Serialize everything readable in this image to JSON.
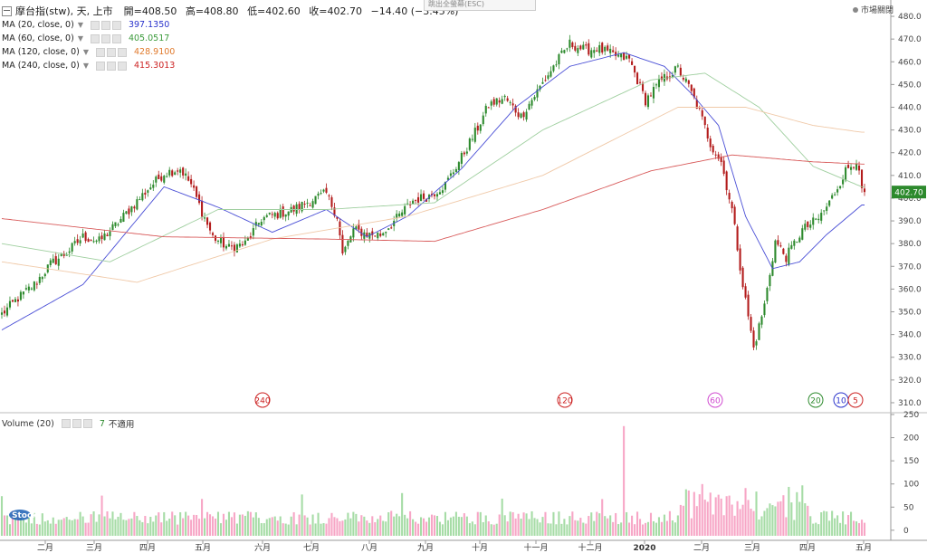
{
  "header": {
    "symbol": "摩台指(stw), 天, 上市",
    "open_label": "開=408.50",
    "high_label": "高=408.80",
    "low_label": "低=402.60",
    "close_label": "收=402.70",
    "change_label": "−14.40 (−3.45%)",
    "fullscreen_hint": "跳出全螢幕(ESC)",
    "market_status": "市場關閉"
  },
  "indicators": [
    {
      "label": "MA (20, close, 0)",
      "value": "397.1350",
      "color": "#2a33cc"
    },
    {
      "label": "MA (60, close, 0)",
      "value": "405.0517",
      "color": "#3a9a3a"
    },
    {
      "label": "MA (120, close, 0)",
      "value": "428.9100",
      "color": "#e07a2c"
    },
    {
      "label": "MA (240, close, 0)",
      "value": "415.3013",
      "color": "#cc2222"
    }
  ],
  "volume_legend": {
    "label": "Volume (20)",
    "value": "7",
    "status": "不適用"
  },
  "last_price_tag": "402.70",
  "logo_text": "Stock",
  "ma_markers": [
    "240",
    "120",
    "60",
    "20",
    "10",
    "5"
  ],
  "colors": {
    "up": "#2d8a2d",
    "down": "#b31c1c",
    "vol_up": "#a6dca6",
    "vol_down": "#f7a6c6",
    "ma20": "#4a4fd6",
    "ma60": "#9fcf9f",
    "ma120": "#f0c9a8",
    "ma240": "#d85a5a",
    "price_tag": "#2d8a2d"
  },
  "chart_data": [
    {
      "type": "candlestick",
      "ylim": [
        306,
        484
      ],
      "y_ticks": [
        310,
        320,
        330,
        340,
        350,
        360,
        370,
        380,
        390,
        400,
        410,
        420,
        430,
        440,
        450,
        460,
        470,
        480
      ],
      "x_labels": [
        "二月",
        "三月",
        "四月",
        "五月",
        "六月",
        "七月",
        "八月",
        "九月",
        "十月",
        "十一月",
        "十二月",
        "2020",
        "二月",
        "三月",
        "四月",
        "五月"
      ],
      "close_trend": [
        [
          0,
          349
        ],
        [
          6,
          356
        ],
        [
          12,
          362
        ],
        [
          18,
          371
        ],
        [
          24,
          376
        ],
        [
          30,
          383
        ],
        [
          36,
          381
        ],
        [
          42,
          388
        ],
        [
          48,
          396
        ],
        [
          54,
          404
        ],
        [
          60,
          411
        ],
        [
          66,
          413
        ],
        [
          70,
          406
        ],
        [
          74,
          394
        ],
        [
          78,
          383
        ],
        [
          84,
          378
        ],
        [
          90,
          380
        ],
        [
          96,
          391
        ],
        [
          102,
          393
        ],
        [
          108,
          395
        ],
        [
          114,
          399
        ],
        [
          120,
          402
        ],
        [
          124,
          392
        ],
        [
          126,
          375
        ],
        [
          130,
          386
        ],
        [
          136,
          384
        ],
        [
          140,
          384
        ],
        [
          146,
          391
        ],
        [
          152,
          399
        ],
        [
          158,
          401
        ],
        [
          164,
          406
        ],
        [
          170,
          418
        ],
        [
          176,
          431
        ],
        [
          180,
          441
        ],
        [
          186,
          444
        ],
        [
          192,
          436
        ],
        [
          198,
          447
        ],
        [
          204,
          458
        ],
        [
          210,
          468
        ],
        [
          216,
          465
        ],
        [
          220,
          466
        ],
        [
          226,
          463
        ],
        [
          232,
          461
        ],
        [
          238,
          443
        ],
        [
          244,
          452
        ],
        [
          250,
          457
        ],
        [
          254,
          449
        ],
        [
          258,
          438
        ],
        [
          262,
          424
        ],
        [
          266,
          416
        ],
        [
          270,
          395
        ],
        [
          274,
          362
        ],
        [
          278,
          334
        ],
        [
          282,
          353
        ],
        [
          286,
          381
        ],
        [
          290,
          374
        ],
        [
          296,
          386
        ],
        [
          302,
          391
        ],
        [
          306,
          398
        ],
        [
          312,
          412
        ],
        [
          316,
          417
        ],
        [
          318,
          403
        ]
      ],
      "ma_series": {
        "ma20": [
          [
            0,
            342
          ],
          [
            30,
            362
          ],
          [
            60,
            405
          ],
          [
            80,
            396
          ],
          [
            100,
            385
          ],
          [
            120,
            395
          ],
          [
            135,
            383
          ],
          [
            150,
            392
          ],
          [
            170,
            413
          ],
          [
            190,
            440
          ],
          [
            210,
            458
          ],
          [
            230,
            464
          ],
          [
            245,
            458
          ],
          [
            255,
            446
          ],
          [
            265,
            432
          ],
          [
            275,
            392
          ],
          [
            285,
            369
          ],
          [
            295,
            372
          ],
          [
            305,
            384
          ],
          [
            318,
            397
          ]
        ],
        "ma60": [
          [
            0,
            380
          ],
          [
            40,
            372
          ],
          [
            80,
            395
          ],
          [
            120,
            395
          ],
          [
            160,
            398
          ],
          [
            200,
            430
          ],
          [
            240,
            452
          ],
          [
            260,
            455
          ],
          [
            280,
            440
          ],
          [
            300,
            414
          ],
          [
            318,
            405
          ]
        ],
        "ma120": [
          [
            0,
            372
          ],
          [
            50,
            363
          ],
          [
            100,
            382
          ],
          [
            150,
            392
          ],
          [
            200,
            410
          ],
          [
            250,
            440
          ],
          [
            275,
            440
          ],
          [
            300,
            432
          ],
          [
            318,
            429
          ]
        ],
        "ma240": [
          [
            0,
            391
          ],
          [
            60,
            383
          ],
          [
            120,
            382
          ],
          [
            160,
            381
          ],
          [
            200,
            395
          ],
          [
            240,
            412
          ],
          [
            270,
            419
          ],
          [
            300,
            416
          ],
          [
            318,
            415
          ]
        ]
      },
      "last_close": 402.7
    },
    {
      "type": "bar",
      "title": "Volume (20)",
      "ylim": [
        -12,
        250
      ],
      "y_ticks": [
        0,
        50,
        100,
        150,
        200,
        250
      ],
      "spike": {
        "index": 230,
        "value": 225
      }
    }
  ]
}
